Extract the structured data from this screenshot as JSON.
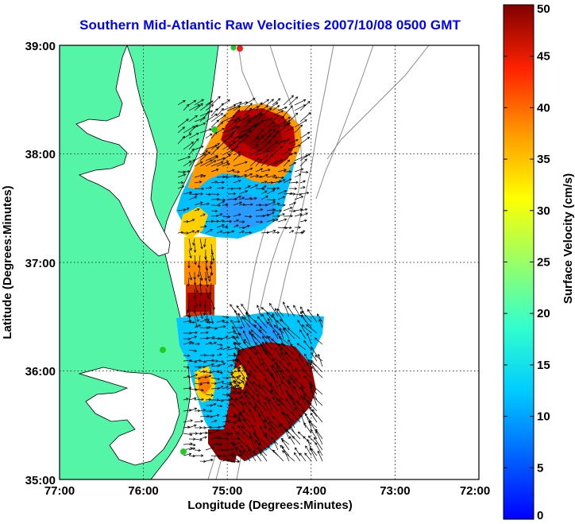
{
  "title": "Southern Mid-Atlantic Raw Velocities 2007/10/08 0500 GMT",
  "x_axis": {
    "label": "Longitude (Degrees:Minutes)",
    "ticks": [
      "77:00",
      "76:00",
      "75:00",
      "74:00",
      "73:00",
      "72:00"
    ]
  },
  "y_axis": {
    "label": "Latitude (Degrees:Minutes)",
    "ticks": [
      "39:00",
      "38:00",
      "37:00",
      "36:00",
      "35:00"
    ]
  },
  "colorbar": {
    "label": "Surface Velocity (cm/s)",
    "ticks": [
      "50",
      "45",
      "40",
      "35",
      "30",
      "25",
      "20",
      "15",
      "10",
      "5",
      "0"
    ],
    "min": 0,
    "max": 50,
    "colormap": "jet"
  },
  "map": {
    "lon_range": [
      -77,
      -72
    ],
    "lat_range": [
      35,
      39
    ],
    "grid": true,
    "land_color": "#55f5a8",
    "water_color": "#ffffff",
    "bathymetry_color": "#8c8c8c",
    "station_color": "#22cc22",
    "active_station_color": "#ee2222"
  }
}
